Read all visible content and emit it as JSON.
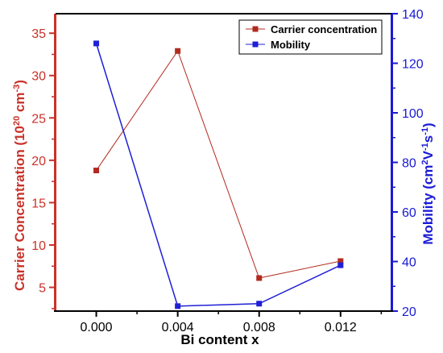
{
  "colors": {
    "left_series": "#b22a1f",
    "right_series": "#1f1fd6",
    "left_axis": "#c8322a",
    "right_axis": "#1a1ad6",
    "frame": "#000000"
  },
  "chart_data": {
    "type": "line",
    "x": [
      0.0,
      0.004,
      0.008,
      0.012
    ],
    "x_ticks": [
      "0.000",
      "0.004",
      "0.008",
      "0.012"
    ],
    "xlabel": "Bi content x",
    "xlim": [
      -0.002,
      0.0145
    ],
    "series": [
      {
        "name": "Carrier concentration",
        "axis": "left",
        "values": [
          18.8,
          32.9,
          6.1,
          8.1
        ],
        "marker": "square"
      },
      {
        "name": "Mobility",
        "axis": "right",
        "values": [
          128,
          22,
          23,
          38.5
        ],
        "marker": "square"
      }
    ],
    "y_left": {
      "label_main": "Carrier Concentration (10",
      "label_sup1": "20",
      "label_mid": " cm",
      "label_sup2": "-3",
      "label_end": ")",
      "ticks": [
        5,
        10,
        15,
        20,
        25,
        30,
        35
      ],
      "ylim": [
        2.2,
        37.3
      ]
    },
    "y_right": {
      "label_main": "Mobility (cm",
      "label_sup1": "2",
      "label_mid": "V",
      "label_sup2": "-1",
      "label_mid2": "s",
      "label_sup3": "-1",
      "label_end": ")",
      "ticks": [
        20,
        40,
        60,
        80,
        100,
        120,
        140
      ],
      "ylim": [
        20,
        140
      ]
    },
    "legend": {
      "position": "top-right"
    },
    "grid": false
  }
}
